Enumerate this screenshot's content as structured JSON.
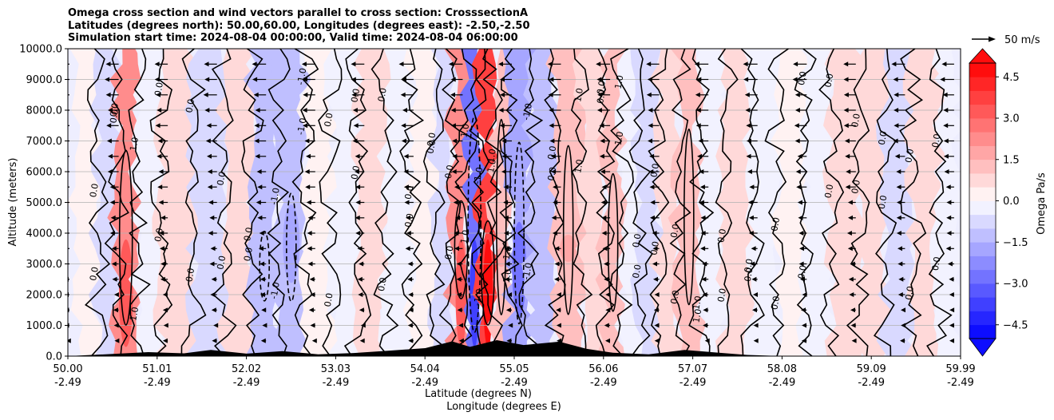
{
  "chart_data": {
    "type": "heatmap",
    "title_lines": [
      "Omega cross section and wind vectors parallel to cross section: CrosssectionA",
      "Latitudes (degrees north): 50.00,60.00, Longitudes (degrees east): -2.50,-2.50",
      "Simulation start time: 2024-08-04 00:00:00, Valid time: 2024-08-04 06:00:00"
    ],
    "ylabel": "Altitude (meters)",
    "xlabel_lines": [
      "Latitude (degrees N)",
      "Longitude (degrees E)"
    ],
    "ylim": [
      0,
      10000
    ],
    "xlim": [
      50.0,
      59.99
    ],
    "y_ticks": [
      {
        "value": 0,
        "label": "0.0"
      },
      {
        "value": 1000,
        "label": "1000.0"
      },
      {
        "value": 2000,
        "label": "2000.0"
      },
      {
        "value": 3000,
        "label": "3000.0"
      },
      {
        "value": 4000,
        "label": "4000.0"
      },
      {
        "value": 5000,
        "label": "5000.0"
      },
      {
        "value": 6000,
        "label": "6000.0"
      },
      {
        "value": 7000,
        "label": "7000.0"
      },
      {
        "value": 8000,
        "label": "8000.0"
      },
      {
        "value": 9000,
        "label": "9000.0"
      },
      {
        "value": 10000,
        "label": "10000.0"
      }
    ],
    "x_ticks": [
      {
        "lat": "50.00",
        "lon": "-2.49"
      },
      {
        "lat": "51.01",
        "lon": "-2.49"
      },
      {
        "lat": "52.02",
        "lon": "-2.49"
      },
      {
        "lat": "53.03",
        "lon": "-2.49"
      },
      {
        "lat": "54.04",
        "lon": "-2.49"
      },
      {
        "lat": "55.05",
        "lon": "-2.49"
      },
      {
        "lat": "56.06",
        "lon": "-2.49"
      },
      {
        "lat": "57.07",
        "lon": "-2.49"
      },
      {
        "lat": "58.08",
        "lon": "-2.49"
      },
      {
        "lat": "59.09",
        "lon": "-2.49"
      },
      {
        "lat": "59.99",
        "lon": "-2.49"
      }
    ],
    "grid": "horizontal",
    "colorbar": {
      "label": "Omega Pa/s",
      "range": [
        -5.0,
        5.0
      ],
      "step": 0.5,
      "extend": "both",
      "ticks": [
        {
          "value": 4.5,
          "label": "4.5"
        },
        {
          "value": 3.0,
          "label": "3.0"
        },
        {
          "value": 1.5,
          "label": "1.5"
        },
        {
          "value": 0.0,
          "label": "0.0"
        },
        {
          "value": -1.5,
          "label": "−1.5"
        },
        {
          "value": -3.0,
          "label": "−3.0"
        },
        {
          "value": -4.5,
          "label": "−4.5"
        }
      ],
      "colors": {
        "negative": "#0000ff",
        "zero": "#ffffff",
        "positive": "#ff0000"
      }
    },
    "quiver_key": {
      "label": "50 m/s"
    },
    "contour_label_values": [
      "1.0",
      "0.0",
      "-1.0",
      "-2.0",
      "2.0",
      "0.7"
    ],
    "omega_columns": [
      {
        "lat": 50.2,
        "value": 0.4
      },
      {
        "lat": 50.45,
        "value": -0.6
      },
      {
        "lat": 50.65,
        "value": 2.3
      },
      {
        "lat": 50.9,
        "value": -0.5
      },
      {
        "lat": 51.2,
        "value": 0.5
      },
      {
        "lat": 51.6,
        "value": -0.9
      },
      {
        "lat": 51.9,
        "value": 0.6
      },
      {
        "lat": 52.2,
        "value": -1.2
      },
      {
        "lat": 52.5,
        "value": -1.4
      },
      {
        "lat": 52.8,
        "value": 0.3
      },
      {
        "lat": 53.1,
        "value": -0.4
      },
      {
        "lat": 53.4,
        "value": 0.5
      },
      {
        "lat": 53.7,
        "value": -0.3
      },
      {
        "lat": 54.0,
        "value": 0.3
      },
      {
        "lat": 54.2,
        "value": -1.0
      },
      {
        "lat": 54.4,
        "value": 2.4
      },
      {
        "lat": 54.55,
        "value": -2.6
      },
      {
        "lat": 54.7,
        "value": 3.9
      },
      {
        "lat": 54.85,
        "value": 1.4
      },
      {
        "lat": 55.05,
        "value": -2.0
      },
      {
        "lat": 55.3,
        "value": -1.1
      },
      {
        "lat": 55.6,
        "value": 1.3
      },
      {
        "lat": 55.9,
        "value": 0.6
      },
      {
        "lat": 56.1,
        "value": 1.2
      },
      {
        "lat": 56.3,
        "value": -0.4
      },
      {
        "lat": 56.5,
        "value": -1.0
      },
      {
        "lat": 56.7,
        "value": 0.9
      },
      {
        "lat": 56.95,
        "value": 1.2
      },
      {
        "lat": 57.2,
        "value": -0.4
      },
      {
        "lat": 57.5,
        "value": 0.6
      },
      {
        "lat": 57.8,
        "value": -0.5
      },
      {
        "lat": 58.1,
        "value": 0.3
      },
      {
        "lat": 58.4,
        "value": -0.4
      },
      {
        "lat": 58.7,
        "value": 0.7
      },
      {
        "lat": 59.0,
        "value": 0.8
      },
      {
        "lat": 59.3,
        "value": -0.8
      },
      {
        "lat": 59.6,
        "value": 0.5
      },
      {
        "lat": 59.9,
        "value": -0.2
      }
    ],
    "terrain": [
      {
        "lat": 50.0,
        "alt": 0
      },
      {
        "lat": 50.5,
        "alt": 70
      },
      {
        "lat": 50.9,
        "alt": 130
      },
      {
        "lat": 51.3,
        "alt": 90
      },
      {
        "lat": 51.6,
        "alt": 200
      },
      {
        "lat": 52.0,
        "alt": 80
      },
      {
        "lat": 52.4,
        "alt": 160
      },
      {
        "lat": 52.8,
        "alt": 60
      },
      {
        "lat": 53.2,
        "alt": 100
      },
      {
        "lat": 53.6,
        "alt": 180
      },
      {
        "lat": 54.0,
        "alt": 260
      },
      {
        "lat": 54.3,
        "alt": 480
      },
      {
        "lat": 54.5,
        "alt": 300
      },
      {
        "lat": 54.8,
        "alt": 520
      },
      {
        "lat": 55.1,
        "alt": 360
      },
      {
        "lat": 55.5,
        "alt": 470
      },
      {
        "lat": 55.8,
        "alt": 240
      },
      {
        "lat": 56.1,
        "alt": 110
      },
      {
        "lat": 56.5,
        "alt": 60
      },
      {
        "lat": 56.9,
        "alt": 200
      },
      {
        "lat": 57.2,
        "alt": 130
      },
      {
        "lat": 57.6,
        "alt": 40
      },
      {
        "lat": 58.0,
        "alt": 0
      },
      {
        "lat": 59.99,
        "alt": 0
      }
    ],
    "wind_levels_m": [
      500,
      1000,
      1500,
      2000,
      2500,
      3000,
      3500,
      4000,
      4500,
      5000,
      5500,
      6000,
      6500,
      7000,
      7500,
      8000,
      8500,
      9000,
      9500
    ],
    "wind_columns_lat": [
      50.0,
      50.55,
      51.1,
      51.65,
      52.2,
      52.75,
      53.3,
      53.85,
      54.4,
      54.95,
      55.5,
      56.05,
      56.6,
      57.15,
      57.7,
      58.25,
      58.8,
      59.35,
      59.9
    ],
    "wind_speed_scale_m_s": 50
  }
}
